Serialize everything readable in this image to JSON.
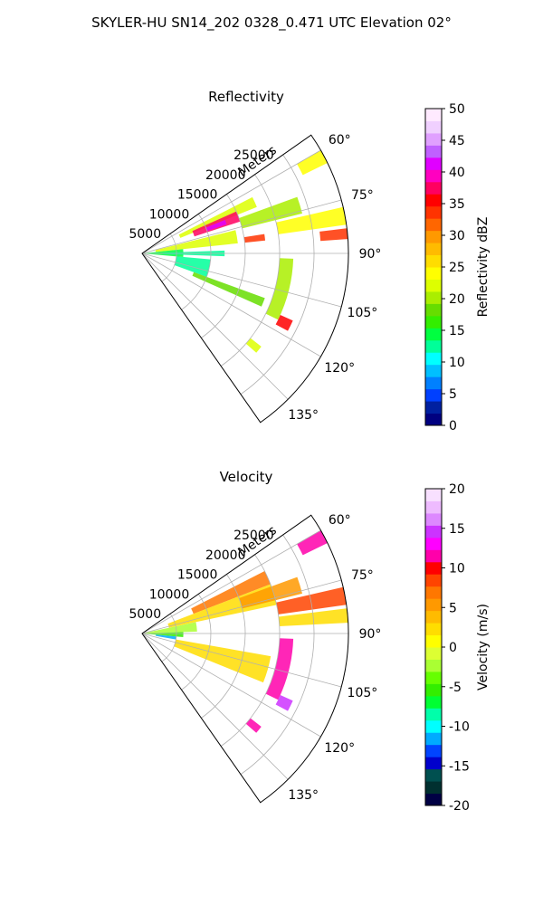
{
  "suptitle": "SKYLER-HU  SN14_202  0328_0.471 UTC Elevation 02°",
  "colors": {
    "ring": "#b0b0b0",
    "axis": "#000000",
    "refl_scale": [
      "#000080",
      "#0020a0",
      "#0040ff",
      "#0080ff",
      "#00c0ff",
      "#00ffff",
      "#00ff99",
      "#00ff40",
      "#33ee00",
      "#66dd00",
      "#aaee00",
      "#ddff00",
      "#ffff00",
      "#ffdd00",
      "#ffbb00",
      "#ff9900",
      "#ff6600",
      "#ff3300",
      "#ff0000",
      "#ff0060",
      "#ff00c0",
      "#e000ff",
      "#c060ff",
      "#e0a0ff",
      "#f0d0ff",
      "#ffeaff"
    ],
    "vel_scale": [
      "#000044",
      "#003030",
      "#005050",
      "#0000cc",
      "#0044ff",
      "#00aaff",
      "#00ffff",
      "#00ffaa",
      "#00ff33",
      "#33ee00",
      "#66ff00",
      "#aaff33",
      "#ddff33",
      "#ffff00",
      "#ffdd00",
      "#ffbb00",
      "#ff9900",
      "#ff7700",
      "#ff4400",
      "#ff0000",
      "#ff00aa",
      "#ff00ff",
      "#cc33ff",
      "#dd88ff",
      "#eebbff",
      "#f8e0ff"
    ]
  },
  "chart_data": [
    {
      "type": "heatmap",
      "title": "Reflectivity",
      "range_label": "Meters",
      "range_ticks": [
        5000,
        10000,
        15000,
        20000,
        25000
      ],
      "range_max": 30000,
      "azimuth_ticks": [
        "60°",
        "75°",
        "90°",
        "105°",
        "120°",
        "135°"
      ],
      "azimuth_range_deg": [
        55,
        145
      ],
      "colorbar": {
        "label": "Reflectivity dBZ",
        "ticks": [
          0,
          5,
          10,
          15,
          20,
          25,
          30,
          35,
          40,
          45,
          50
        ],
        "min": 0,
        "max": 50
      },
      "echo_regions": [
        {
          "az": [
            60,
            64
          ],
          "r": [
            26000,
            30000
          ],
          "value": 24
        },
        {
          "az": [
            63,
            68
          ],
          "r": [
            6000,
            18000
          ],
          "value": 22
        },
        {
          "az": [
            66,
            72
          ],
          "r": [
            8000,
            15000
          ],
          "value": 37
        },
        {
          "az": [
            68,
            71
          ],
          "r": [
            10000,
            13000
          ],
          "value": 42
        },
        {
          "az": [
            70,
            76
          ],
          "r": [
            15000,
            24000
          ],
          "value": 20
        },
        {
          "az": [
            77,
            82
          ],
          "r": [
            20000,
            30000
          ],
          "value": 24
        },
        {
          "az": [
            83,
            86
          ],
          "r": [
            26000,
            30000
          ],
          "value": 33
        },
        {
          "az": [
            76,
            84
          ],
          "r": [
            2000,
            14000
          ],
          "value": 23
        },
        {
          "az": [
            81,
            84
          ],
          "r": [
            15000,
            18000
          ],
          "value": 34
        },
        {
          "az": [
            84,
            95
          ],
          "r": [
            0,
            6000
          ],
          "value": 15
        },
        {
          "az": [
            88,
            92
          ],
          "r": [
            3000,
            12000
          ],
          "value": 12
        },
        {
          "az": [
            95,
            110
          ],
          "r": [
            5000,
            10000
          ],
          "value": 13
        },
        {
          "az": [
            110,
            114
          ],
          "r": [
            8000,
            19000
          ],
          "value": 19
        },
        {
          "az": [
            92,
            116
          ],
          "r": [
            20000,
            22000
          ],
          "value": 20
        },
        {
          "az": [
            114,
            118
          ],
          "r": [
            22000,
            24000
          ],
          "value": 36
        },
        {
          "az": [
            128,
            131
          ],
          "r": [
            20000,
            22000
          ],
          "value": 23
        }
      ]
    },
    {
      "type": "heatmap",
      "title": "Velocity",
      "range_label": "Meters",
      "range_ticks": [
        5000,
        10000,
        15000,
        20000,
        25000
      ],
      "range_max": 30000,
      "azimuth_ticks": [
        "60°",
        "75°",
        "90°",
        "105°",
        "120°",
        "135°"
      ],
      "azimuth_range_deg": [
        55,
        145
      ],
      "colorbar": {
        "label": "Velocity (m/s)",
        "ticks": [
          -20,
          -15,
          -10,
          -5,
          0,
          5,
          10,
          15,
          20
        ],
        "min": -20,
        "max": 20
      },
      "echo_regions": [
        {
          "az": [
            60,
            64
          ],
          "r": [
            26000,
            30000
          ],
          "value": 12
        },
        {
          "az": [
            63,
            69
          ],
          "r": [
            8000,
            20000
          ],
          "value": 7
        },
        {
          "az": [
            69,
            78
          ],
          "r": [
            4000,
            20000
          ],
          "value": 3
        },
        {
          "az": [
            70,
            76
          ],
          "r": [
            15000,
            24000
          ],
          "value": 5
        },
        {
          "az": [
            77,
            82
          ],
          "r": [
            20000,
            30000
          ],
          "value": 8
        },
        {
          "az": [
            83,
            87
          ],
          "r": [
            20000,
            30000
          ],
          "value": 3
        },
        {
          "az": [
            78,
            88
          ],
          "r": [
            0,
            8000
          ],
          "value": -3
        },
        {
          "az": [
            88,
            95
          ],
          "r": [
            0,
            6000
          ],
          "value": -6
        },
        {
          "az": [
            95,
            100
          ],
          "r": [
            2000,
            5000
          ],
          "value": -11
        },
        {
          "az": [
            100,
            112
          ],
          "r": [
            5000,
            19000
          ],
          "value": 2
        },
        {
          "az": [
            92,
            116
          ],
          "r": [
            20000,
            22000
          ],
          "value": 12
        },
        {
          "az": [
            114,
            118
          ],
          "r": [
            22000,
            24000
          ],
          "value": 14
        },
        {
          "az": [
            128,
            131
          ],
          "r": [
            20000,
            22000
          ],
          "value": 12
        }
      ]
    }
  ]
}
